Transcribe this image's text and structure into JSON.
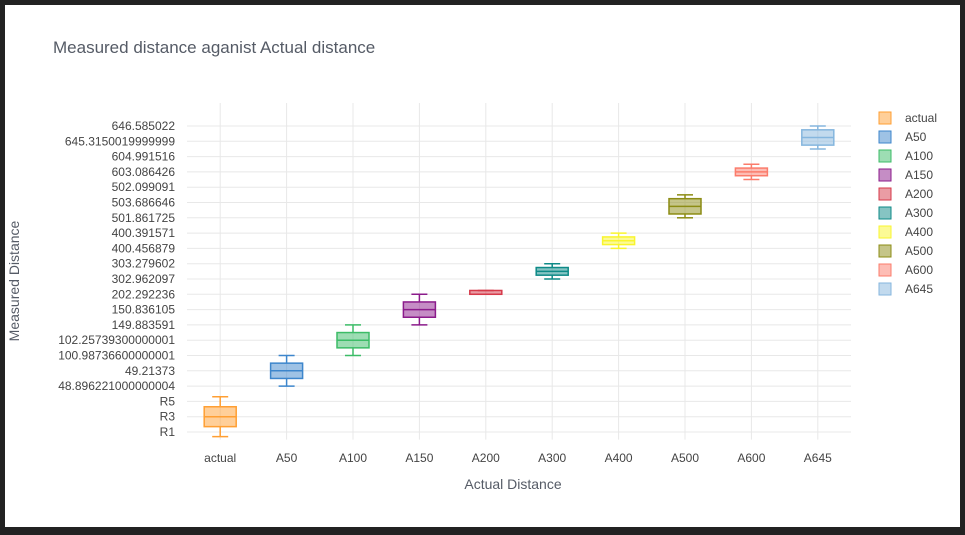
{
  "chart_data": {
    "type": "box",
    "title": "Measured distance aganist Actual distance",
    "xlabel": "Actual Distance",
    "ylabel": "Measured Distance",
    "y_categories": [
      "R1",
      "R3",
      "R5",
      "48.896221000000004",
      "49.21373",
      "100.98736600000001",
      "102.25739300000001",
      "149.883591",
      "150.836105",
      "202.292236",
      "302.962097",
      "303.279602",
      "400.456879",
      "400.391571",
      "501.861725",
      "503.686646",
      "502.099091",
      "603.086426",
      "604.991516",
      "645.3150019999999",
      "646.585022"
    ],
    "series": [
      {
        "name": "actual",
        "color": "#ff9f33",
        "box": {
          "lower_fence": -0.3,
          "q1": 0.35,
          "median": 1.0,
          "q3": 1.65,
          "upper_fence": 2.3
        }
      },
      {
        "name": "A50",
        "color": "#3d86cc",
        "box": {
          "lower_fence": 3.0,
          "q1": 3.5,
          "median": 4.0,
          "q3": 4.5,
          "upper_fence": 5.0
        }
      },
      {
        "name": "A100",
        "color": "#3cbc67",
        "box": {
          "lower_fence": 5.0,
          "q1": 5.5,
          "median": 6.0,
          "q3": 6.5,
          "upper_fence": 7.0
        }
      },
      {
        "name": "A150",
        "color": "#8b1b8b",
        "box": {
          "lower_fence": 7.0,
          "q1": 7.5,
          "median": 8.0,
          "q3": 8.5,
          "upper_fence": 9.0
        }
      },
      {
        "name": "A200",
        "color": "#d63a4a",
        "box": {
          "lower_fence": 9.0,
          "q1": 9.0,
          "median": 9.0,
          "q3": 9.25,
          "upper_fence": 9.25
        }
      },
      {
        "name": "A300",
        "color": "#0e8a87",
        "box": {
          "lower_fence": 10.0,
          "q1": 10.25,
          "median": 10.5,
          "q3": 10.75,
          "upper_fence": 11.0
        }
      },
      {
        "name": "A400",
        "color": "#f9f52e",
        "box": {
          "lower_fence": 12.0,
          "q1": 12.25,
          "median": 12.5,
          "q3": 12.75,
          "upper_fence": 13.0
        }
      },
      {
        "name": "A500",
        "color": "#8c8c14",
        "box": {
          "lower_fence": 14.0,
          "q1": 14.25,
          "median": 14.75,
          "q3": 15.25,
          "upper_fence": 15.5
        }
      },
      {
        "name": "A600",
        "color": "#fb7c6b",
        "box": {
          "lower_fence": 16.5,
          "q1": 16.75,
          "median": 17.0,
          "q3": 17.25,
          "upper_fence": 17.5
        }
      },
      {
        "name": "A645",
        "color": "#85b6de",
        "box": {
          "lower_fence": 18.5,
          "q1": 18.75,
          "median": 19.25,
          "q3": 19.75,
          "upper_fence": 20.0
        }
      }
    ],
    "x_categories": [
      "actual",
      "A50",
      "A100",
      "A150",
      "A200",
      "A300",
      "A400",
      "A500",
      "A600",
      "A645"
    ],
    "grid": true,
    "legend": "right"
  }
}
